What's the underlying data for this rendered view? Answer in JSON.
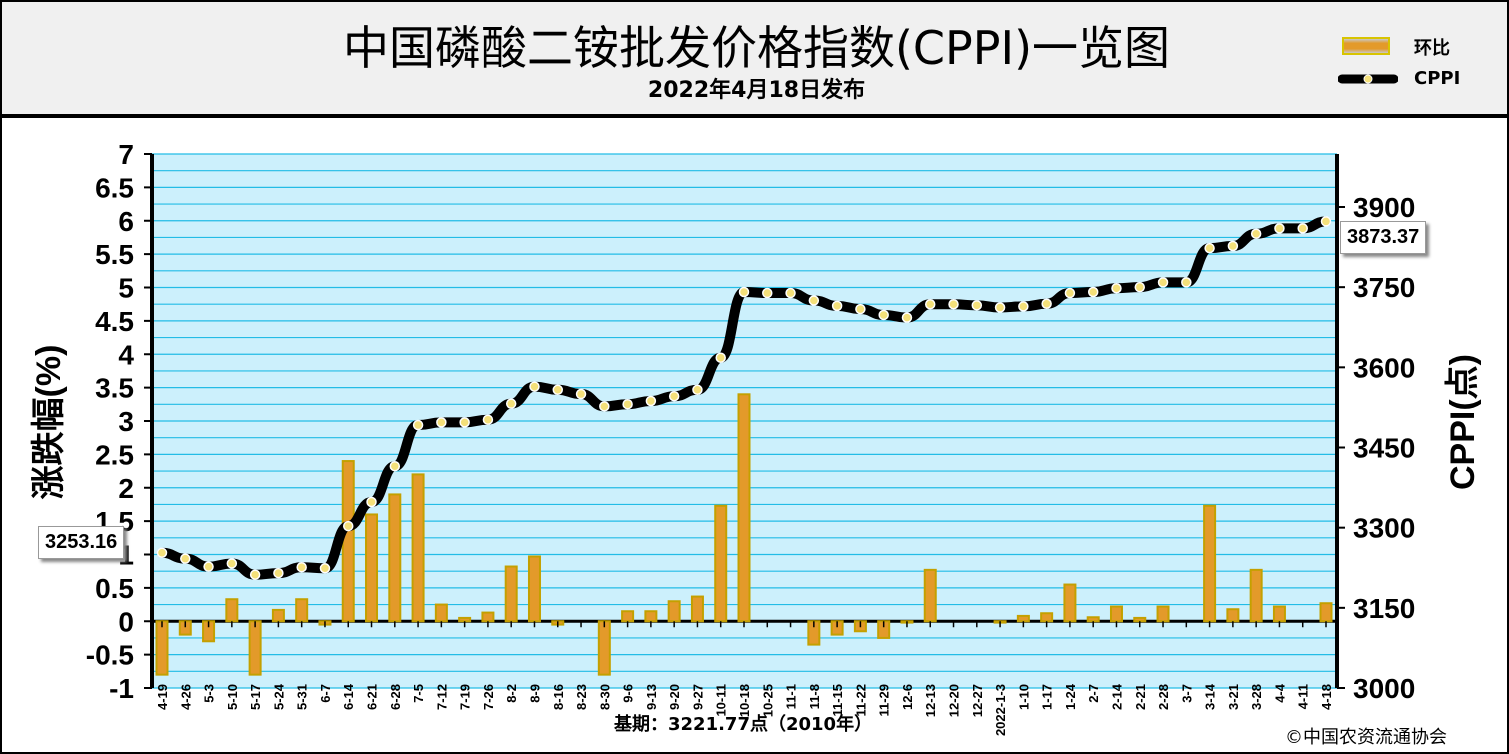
{
  "header": {
    "title": "中国磷酸二铵批发价格指数(CPPI)一览图",
    "subtitle": "2022年4月18日发布"
  },
  "legend": {
    "bar_label": "环比",
    "line_label": "CPPI"
  },
  "callouts": {
    "start": "3253.16",
    "end": "3873.37"
  },
  "footer": {
    "base": "基期：3221.77点（2010年）",
    "copyright": "©中国农资流通协会"
  },
  "colors": {
    "plot_bg": "#ccf0fc",
    "grid": "#22bce6",
    "bar_fill": "#e39a2a",
    "bar_edge": "#c4a000",
    "line": "#000000",
    "marker": "#f4e07a"
  },
  "chart_data": {
    "type": "bar+line",
    "left_axis": {
      "label": "涨跌幅(%)",
      "min": -1,
      "max": 7,
      "ticks": [
        "7",
        "6.5",
        "6",
        "5.5",
        "5",
        "4.5",
        "4",
        "3.5",
        "3",
        "2.5",
        "2",
        "1.5",
        "1",
        "0.5",
        "0",
        "-0.5",
        "-1"
      ]
    },
    "right_axis": {
      "label": "CPPI(点)",
      "min": 3000,
      "max": 3900,
      "ticks": [
        "3900",
        "3750",
        "3600",
        "3450",
        "3300",
        "3150",
        "3000"
      ]
    },
    "categories": [
      "4-19",
      "4-26",
      "5-3",
      "5-10",
      "5-17",
      "5-24",
      "5-31",
      "6-7",
      "6-14",
      "6-21",
      "6-28",
      "7-5",
      "7-12",
      "7-19",
      "7-26",
      "8-2",
      "8-9",
      "8-16",
      "8-23",
      "8-30",
      "9-6",
      "9-13",
      "9-20",
      "9-27",
      "10-11",
      "10-18",
      "10-25",
      "11-1",
      "11-8",
      "11-15",
      "11-22",
      "11-29",
      "12-6",
      "12-13",
      "12-20",
      "12-27",
      "2022-1-3",
      "1-10",
      "1-17",
      "1-24",
      "2-7",
      "2-14",
      "2-21",
      "2-28",
      "3-7",
      "3-14",
      "3-21",
      "3-28",
      "4-4",
      "4-11",
      "4-18"
    ],
    "series": [
      {
        "name": "环比",
        "type": "bar",
        "values": [
          -0.8,
          -0.2,
          -0.3,
          0.33,
          -0.8,
          0.17,
          0.33,
          -0.05,
          2.4,
          1.6,
          1.9,
          2.2,
          0.25,
          0.05,
          0.13,
          0.82,
          0.97,
          -0.05,
          0,
          -0.8,
          0.15,
          0.15,
          0.3,
          0.37,
          1.73,
          3.4,
          0,
          0,
          -0.35,
          -0.2,
          -0.15,
          -0.25,
          -0.02,
          0.77,
          0,
          0,
          -0.02,
          0.08,
          0.12,
          0.55,
          0.06,
          0.22,
          0.05,
          0.22,
          0,
          1.73,
          0.18,
          0.77,
          0.22,
          0,
          0.27
        ]
      },
      {
        "name": "CPPI",
        "type": "line",
        "values": [
          3253,
          3242,
          3227,
          3233,
          3212,
          3215,
          3226,
          3224,
          3303,
          3348,
          3415,
          3492,
          3497,
          3497,
          3502,
          3532,
          3564,
          3558,
          3550,
          3527,
          3531,
          3537,
          3546,
          3558,
          3618,
          3741,
          3739,
          3739,
          3725,
          3715,
          3709,
          3698,
          3693,
          3718,
          3718,
          3716,
          3712,
          3714,
          3719,
          3739,
          3741,
          3748,
          3750,
          3759,
          3759,
          3823,
          3827,
          3850,
          3860,
          3860,
          3873
        ]
      }
    ]
  }
}
